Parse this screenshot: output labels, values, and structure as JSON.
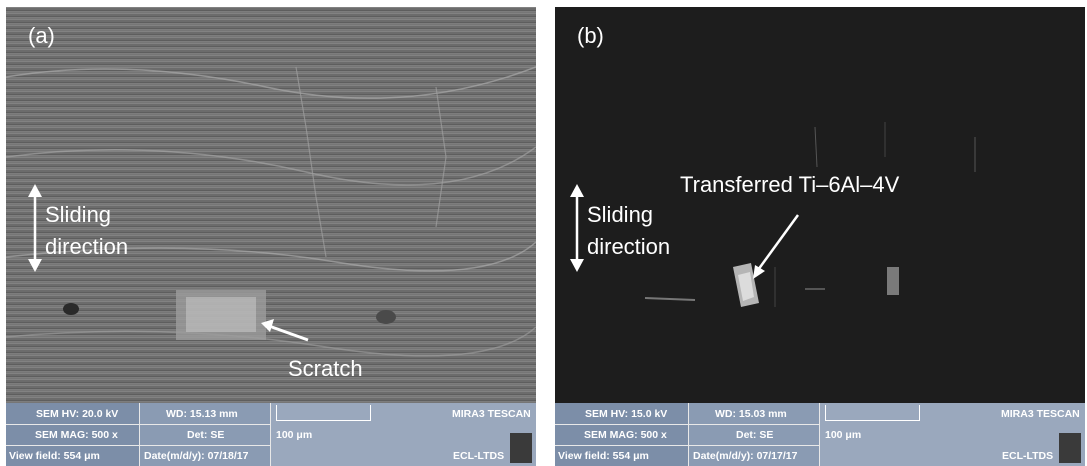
{
  "panels": [
    {
      "label": "(a)",
      "annotations": {
        "sliding_line1": "Sliding",
        "sliding_line2": "direction",
        "feature": "Scratch"
      },
      "databar": {
        "hv": "SEM HV: 20.0 kV",
        "wd": "WD: 15.13 mm",
        "brand": "MIRA3 TESCAN",
        "mag": "SEM MAG: 500 x",
        "det": "Det: SE",
        "scale": "100 μm",
        "view": "View field: 554 μm",
        "date": "Date(m/d/y): 07/18/17",
        "lab": "ECL-LTDS"
      }
    },
    {
      "label": "(b)",
      "annotations": {
        "sliding_line1": "Sliding",
        "sliding_line2": "direction",
        "feature": "Transferred Ti–6Al–4V"
      },
      "databar": {
        "hv": "SEM HV: 15.0 kV",
        "wd": "WD: 15.03 mm",
        "brand": "MIRA3 TESCAN",
        "mag": "SEM MAG: 500 x",
        "det": "Det: SE",
        "scale": "100 μm",
        "view": "View field: 554 μm",
        "date": "Date(m/d/y): 07/17/17",
        "lab": "ECL-LTDS"
      }
    }
  ]
}
